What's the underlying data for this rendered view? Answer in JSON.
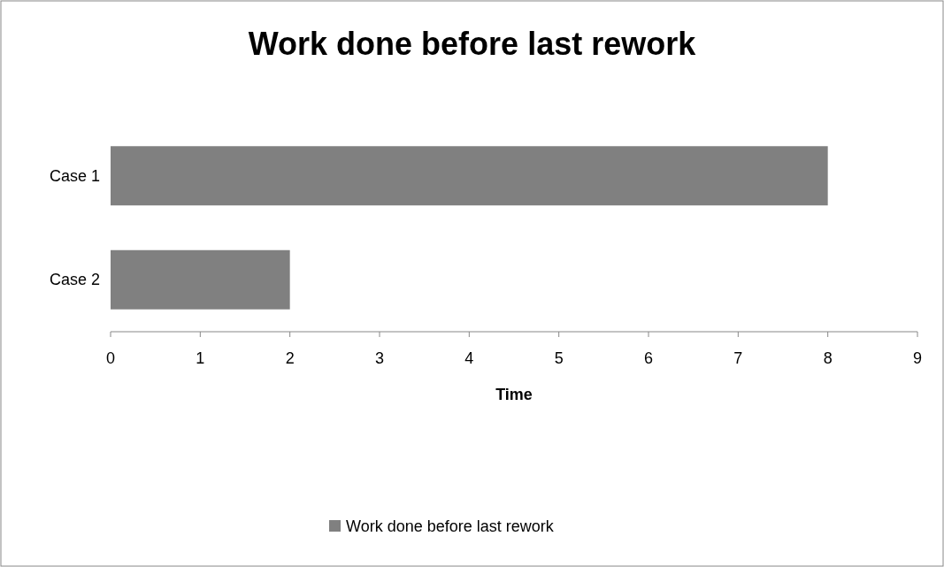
{
  "chart_data": {
    "type": "bar",
    "orientation": "horizontal",
    "title": "Work done before last rework",
    "xlabel": "Time",
    "categories": [
      "Case 1",
      "Case 2"
    ],
    "series": [
      {
        "name": "Work done before last rework",
        "color": "#808080",
        "values": [
          8,
          2
        ]
      }
    ],
    "xlim": [
      0,
      9
    ],
    "xticks": [
      0,
      1,
      2,
      3,
      4,
      5,
      6,
      7,
      8,
      9
    ],
    "grid": false,
    "legend": "bottom"
  }
}
